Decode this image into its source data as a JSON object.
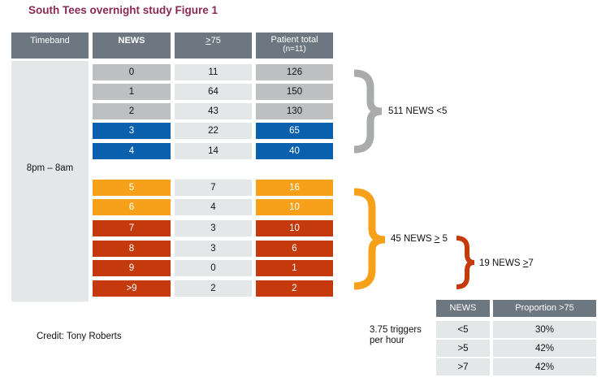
{
  "title": "South Tees overnight study Figure 1",
  "main_table": {
    "headers": {
      "timeband": "Timeband",
      "news": "NEWS",
      "gt75_prefix": ">",
      "gt75_suffix": "75",
      "patient_total": "Patient total",
      "patient_total_sub": "(n=11)"
    },
    "timeband": "8pm – 8am",
    "rows": [
      {
        "news": "0",
        "gt75": "11",
        "total": "126"
      },
      {
        "news": "1",
        "gt75": "64",
        "total": "150"
      },
      {
        "news": "2",
        "gt75": "43",
        "total": "130"
      },
      {
        "news": "3",
        "gt75": "22",
        "total": "65"
      },
      {
        "news": "4",
        "gt75": "14",
        "total": "40"
      },
      {
        "news": "5",
        "gt75": "7",
        "total": "16"
      },
      {
        "news": "6",
        "gt75": "4",
        "total": "10"
      },
      {
        "news": "7",
        "gt75": "3",
        "total": "10"
      },
      {
        "news": "8",
        "gt75": "3",
        "total": "6"
      },
      {
        "news": "9",
        "gt75": "0",
        "total": "1"
      },
      {
        "news": ">9",
        "gt75": "2",
        "total": "2"
      }
    ]
  },
  "brace_labels": {
    "lt5": "511 NEWS <5",
    "ge5_prefix": "45 NEWS ",
    "ge5_sym": ">",
    "ge5_suffix": " 5",
    "ge7_prefix": "19 NEWS ",
    "ge7_sym": ">",
    "ge7_suffix": "7"
  },
  "credit": "Credit: Tony Roberts",
  "triggers": {
    "line1": "3.75 triggers",
    "line2": "per hour"
  },
  "proportion_table": {
    "headers": {
      "news": "NEWS",
      "proportion": "Proportion >75"
    },
    "rows": [
      {
        "news": "<5",
        "proportion": "30%"
      },
      {
        "news": ">5",
        "proportion": "42%"
      },
      {
        "news": ">7",
        "proportion": "42%"
      }
    ]
  },
  "colors": {
    "grey": "#bdbfc1",
    "blue": "#0a60ad",
    "orange": "#f7a11a",
    "red": "#c43a0c",
    "header": "#6d7781",
    "title": "#8a2a55"
  }
}
